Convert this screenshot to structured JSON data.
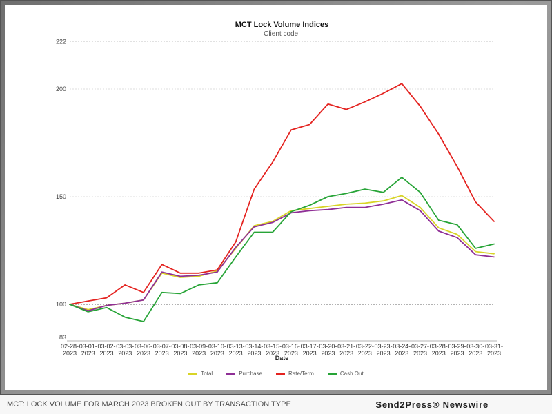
{
  "header": {
    "title": "MCT Lock Volume Indices",
    "subtitle": "Client code:"
  },
  "chart_data": {
    "type": "line",
    "title": "MCT Lock Volume Indices",
    "subtitle": "Client code:",
    "xlabel": "Date",
    "ylabel": "",
    "ylim": [
      83,
      222
    ],
    "y_ticks": [
      222,
      200,
      150,
      100,
      83
    ],
    "reference_line": 100,
    "grid": "horizontal-dotted",
    "legend_position": "bottom",
    "x": [
      "02-28-2023",
      "03-01-2023",
      "03-02-2023",
      "03-03-2023",
      "03-06-2023",
      "03-07-2023",
      "03-08-2023",
      "03-09-2023",
      "03-10-2023",
      "03-13-2023",
      "03-14-2023",
      "03-15-2023",
      "03-16-2023",
      "03-17-2023",
      "03-20-2023",
      "03-21-2023",
      "03-22-2023",
      "03-23-2023",
      "03-24-2023",
      "03-27-2023",
      "03-28-2023",
      "03-29-2023",
      "03-30-2023",
      "03-31-2023"
    ],
    "series": [
      {
        "name": "Total",
        "color": "#d8d426",
        "values": [
          100,
          97.5,
          99.5,
          100.5,
          102,
          114.5,
          112.5,
          113,
          115.5,
          126,
          136.5,
          138.5,
          143.5,
          144.5,
          145.5,
          146.5,
          147,
          148,
          150.5,
          145,
          135.5,
          132.5,
          124.5,
          123.5
        ]
      },
      {
        "name": "Purchase",
        "color": "#8f2f96",
        "values": [
          100,
          97,
          99.5,
          100.5,
          102,
          115,
          113,
          113.5,
          115,
          126.5,
          136,
          138,
          142.5,
          143.5,
          144,
          145,
          145,
          146.5,
          148.5,
          143.5,
          134,
          131,
          123,
          122
        ]
      },
      {
        "name": "Rate/Term",
        "color": "#e42320",
        "values": [
          100,
          101.5,
          103,
          109,
          105.5,
          118.5,
          114.5,
          114.5,
          116,
          129,
          153.5,
          166,
          181,
          183.5,
          193,
          190.5,
          194,
          198,
          202.5,
          192,
          179,
          164,
          147.5,
          138.5
        ]
      },
      {
        "name": "Cash Out",
        "color": "#27a437",
        "values": [
          100,
          96.5,
          98.5,
          94,
          92,
          105.5,
          105,
          109,
          110,
          122,
          133.5,
          133.5,
          143,
          146,
          150,
          151.5,
          153.5,
          152,
          159,
          152,
          139,
          137,
          126,
          128
        ]
      }
    ]
  },
  "footer": {
    "caption": "MCT: LOCK VOLUME FOR MARCH 2023 BROKEN OUT BY TRANSACTION TYPE",
    "brand": "Send2Press® Newswire"
  }
}
